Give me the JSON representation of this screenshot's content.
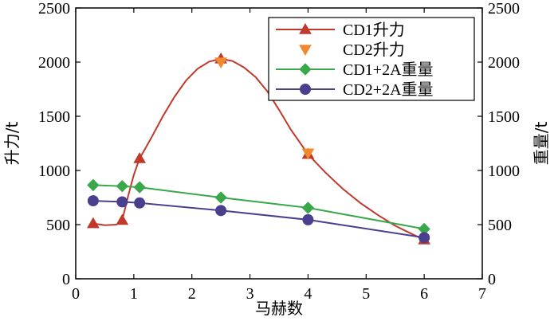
{
  "chart_data": {
    "type": "line",
    "title": "",
    "xlabel": "马赫数",
    "ylabel_left": "升力/t",
    "ylabel_right": "重量/t",
    "xlim": [
      0,
      7
    ],
    "ylim_left": [
      0,
      2500
    ],
    "ylim_right": [
      0,
      2500
    ],
    "x_ticks": [
      "0",
      "1",
      "2",
      "3",
      "4",
      "5",
      "6",
      "7"
    ],
    "y_ticks_left": [
      "0",
      "500",
      "1000",
      "1500",
      "2000",
      "2500"
    ],
    "y_ticks_right": [
      "0",
      "500",
      "1000",
      "1500",
      "2000",
      "2500"
    ],
    "grid": false,
    "legend_position": "top-right",
    "series": [
      {
        "name": "CD1升力",
        "marker": "triangle-up",
        "color": "#c0392b",
        "line": "smooth",
        "x": [
          0.3,
          0.8,
          1.1,
          2.5,
          4.0,
          6.0
        ],
        "y": [
          510,
          540,
          1110,
          2030,
          1150,
          360
        ],
        "curve_path": [
          [
            0.3,
            510
          ],
          [
            0.5,
            495
          ],
          [
            0.7,
            500
          ],
          [
            0.8,
            540
          ],
          [
            0.9,
            760
          ],
          [
            1.0,
            960
          ],
          [
            1.1,
            1110
          ],
          [
            1.3,
            1300
          ],
          [
            1.5,
            1500
          ],
          [
            1.7,
            1680
          ],
          [
            1.9,
            1830
          ],
          [
            2.1,
            1940
          ],
          [
            2.3,
            2005
          ],
          [
            2.5,
            2030
          ],
          [
            2.7,
            2010
          ],
          [
            2.9,
            1950
          ],
          [
            3.1,
            1860
          ],
          [
            3.3,
            1730
          ],
          [
            3.5,
            1560
          ],
          [
            3.7,
            1380
          ],
          [
            4.0,
            1150
          ],
          [
            4.3,
            980
          ],
          [
            4.6,
            830
          ],
          [
            4.9,
            700
          ],
          [
            5.2,
            590
          ],
          [
            5.5,
            490
          ],
          [
            5.8,
            410
          ],
          [
            6.0,
            360
          ]
        ]
      },
      {
        "name": "CD2升力",
        "marker": "triangle-down",
        "color": "#f0892e",
        "line": "none",
        "x": [
          2.5,
          4.0
        ],
        "y": [
          2000,
          1160
        ]
      },
      {
        "name": "CD1+2A重量",
        "marker": "diamond",
        "color": "#3aa84a",
        "line": "straight",
        "x": [
          0.3,
          0.8,
          1.1,
          2.5,
          4.0,
          6.0
        ],
        "y": [
          865,
          855,
          845,
          750,
          655,
          460
        ]
      },
      {
        "name": "CD2+2A重量",
        "marker": "circle",
        "color": "#4a3f8f",
        "line": "straight",
        "x": [
          0.3,
          0.8,
          1.1,
          2.5,
          4.0,
          6.0
        ],
        "y": [
          720,
          710,
          700,
          630,
          545,
          380
        ]
      }
    ]
  }
}
